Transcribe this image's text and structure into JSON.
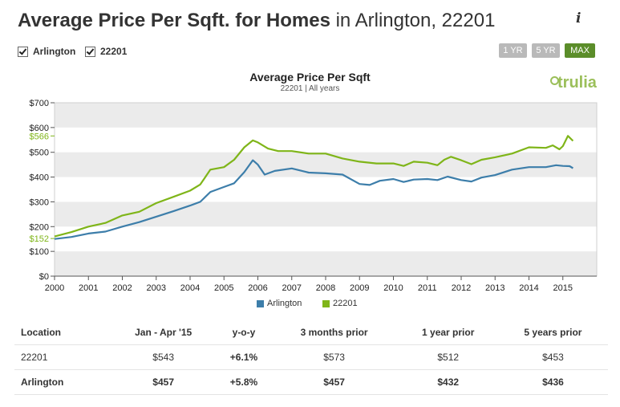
{
  "header": {
    "title_bold": "Average Price Per Sqft. for Homes",
    "title_rest": " in Arlington, 22201",
    "info_icon": "i"
  },
  "filters": [
    {
      "label": "Arlington",
      "checked": true
    },
    {
      "label": "22201",
      "checked": true
    }
  ],
  "range_buttons": [
    {
      "label": "1 YR",
      "active": false
    },
    {
      "label": "5 YR",
      "active": false
    },
    {
      "label": "MAX",
      "active": true
    }
  ],
  "brand": "trulia",
  "colors": {
    "arlington": "#3d7eaa",
    "zip": "#7fb519",
    "band": "#ebebeb",
    "active": "#5b8d2a",
    "inactive": "#b9b9b9"
  },
  "chart_data": {
    "type": "line",
    "title": "Average Price Per Sqft",
    "subtitle": "22201   |   All years",
    "xlim": [
      2000,
      2016
    ],
    "ylim": [
      0,
      700
    ],
    "x_ticks": [
      "2000",
      "2001",
      "2002",
      "2003",
      "2004",
      "2005",
      "2006",
      "2007",
      "2008",
      "2009",
      "2010",
      "2011",
      "2012",
      "2013",
      "2014",
      "2015"
    ],
    "y_ticks": [
      "$0",
      "$100",
      "$200",
      "$300",
      "$400",
      "$500",
      "$600",
      "$700"
    ],
    "highlight_ticks": [
      {
        "label": "$566",
        "value": 566,
        "series": "22201"
      },
      {
        "label": "$152",
        "value": 152,
        "series": "22201"
      }
    ],
    "grid": true,
    "legend_position": "bottom",
    "series": [
      {
        "name": "Arlington",
        "color": "#3d7eaa",
        "points": [
          [
            2000,
            150
          ],
          [
            2000.5,
            158
          ],
          [
            2001,
            172
          ],
          [
            2001.5,
            180
          ],
          [
            2002,
            200
          ],
          [
            2002.5,
            218
          ],
          [
            2003,
            240
          ],
          [
            2003.5,
            262
          ],
          [
            2004,
            285
          ],
          [
            2004.3,
            300
          ],
          [
            2004.6,
            340
          ],
          [
            2005,
            360
          ],
          [
            2005.3,
            375
          ],
          [
            2005.6,
            420
          ],
          [
            2005.85,
            468
          ],
          [
            2006,
            450
          ],
          [
            2006.2,
            410
          ],
          [
            2006.5,
            425
          ],
          [
            2007,
            435
          ],
          [
            2007.5,
            418
          ],
          [
            2008,
            415
          ],
          [
            2008.5,
            410
          ],
          [
            2009,
            372
          ],
          [
            2009.3,
            368
          ],
          [
            2009.6,
            385
          ],
          [
            2010,
            392
          ],
          [
            2010.3,
            380
          ],
          [
            2010.6,
            390
          ],
          [
            2011,
            392
          ],
          [
            2011.3,
            388
          ],
          [
            2011.6,
            402
          ],
          [
            2012,
            388
          ],
          [
            2012.3,
            382
          ],
          [
            2012.6,
            398
          ],
          [
            2013,
            408
          ],
          [
            2013.5,
            430
          ],
          [
            2014,
            440
          ],
          [
            2014.5,
            440
          ],
          [
            2014.8,
            448
          ],
          [
            2015,
            445
          ],
          [
            2015.2,
            444
          ],
          [
            2015.3,
            436
          ]
        ]
      },
      {
        "name": "22201",
        "color": "#7fb519",
        "points": [
          [
            2000,
            160
          ],
          [
            2000.5,
            178
          ],
          [
            2001,
            200
          ],
          [
            2001.5,
            215
          ],
          [
            2002,
            245
          ],
          [
            2002.5,
            260
          ],
          [
            2003,
            295
          ],
          [
            2003.5,
            320
          ],
          [
            2004,
            345
          ],
          [
            2004.3,
            370
          ],
          [
            2004.6,
            430
          ],
          [
            2005,
            440
          ],
          [
            2005.3,
            470
          ],
          [
            2005.6,
            520
          ],
          [
            2005.85,
            548
          ],
          [
            2006,
            540
          ],
          [
            2006.3,
            515
          ],
          [
            2006.6,
            505
          ],
          [
            2007,
            505
          ],
          [
            2007.5,
            495
          ],
          [
            2008,
            495
          ],
          [
            2008.5,
            475
          ],
          [
            2009,
            462
          ],
          [
            2009.5,
            455
          ],
          [
            2010,
            455
          ],
          [
            2010.3,
            445
          ],
          [
            2010.6,
            462
          ],
          [
            2011,
            458
          ],
          [
            2011.3,
            448
          ],
          [
            2011.5,
            470
          ],
          [
            2011.7,
            482
          ],
          [
            2012,
            468
          ],
          [
            2012.3,
            452
          ],
          [
            2012.6,
            470
          ],
          [
            2013,
            480
          ],
          [
            2013.5,
            495
          ],
          [
            2014,
            520
          ],
          [
            2014.5,
            518
          ],
          [
            2014.7,
            528
          ],
          [
            2014.9,
            512
          ],
          [
            2015,
            525
          ],
          [
            2015.15,
            566
          ],
          [
            2015.3,
            546
          ]
        ]
      }
    ]
  },
  "stats_table": {
    "headers": [
      "Location",
      "Jan - Apr '15",
      "y-o-y",
      "3 months prior",
      "1 year prior",
      "5 years prior"
    ],
    "rows": [
      {
        "cells": [
          "22201",
          "$543",
          "+6.1%",
          "$573",
          "$512",
          "$453"
        ]
      },
      {
        "cells": [
          "Arlington",
          "$457",
          "+5.8%",
          "$457",
          "$432",
          "$436"
        ]
      }
    ]
  }
}
